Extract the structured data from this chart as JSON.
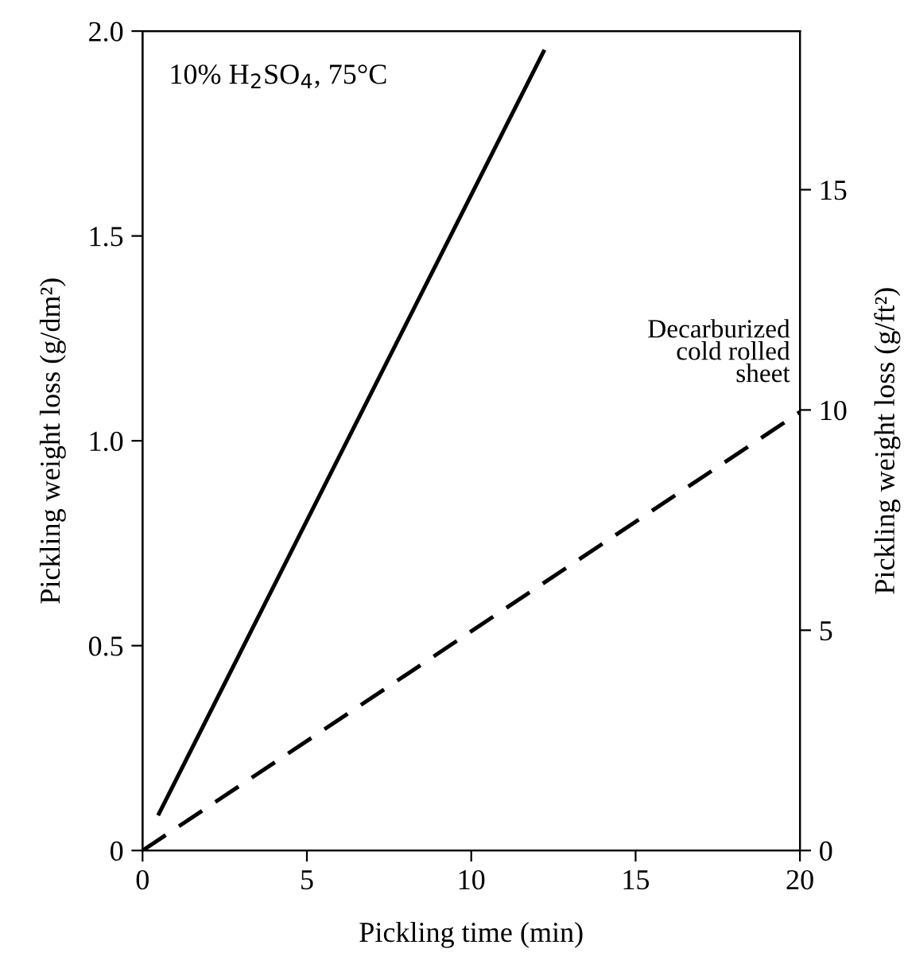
{
  "chart_data": {
    "type": "line",
    "xlabel": "Pickling time (min)",
    "ylabel": "Pickling weight loss (g/dm²)",
    "y2label": "Pickling weight loss (g/ft²)",
    "annotations": [
      "10% H$_{2}$SO$_{4}$, 75°C"
    ],
    "series": [
      {
        "color": "#000000",
        "line_style": "solid",
        "x": [
          0.5,
          12.2
        ],
        "values": [
          0.09,
          1.95
        ]
      },
      {
        "name": "Decarburized\ncold rolled\nsheet",
        "color": "#000000",
        "line_style": "dashed",
        "x": [
          0,
          20
        ],
        "values": [
          0,
          1.07
        ]
      }
    ],
    "xlim": [
      0,
      20
    ],
    "xticks": [
      0,
      5,
      10,
      15,
      20
    ],
    "ylim": [
      0,
      2.0
    ],
    "yticks": [
      0,
      {
        "value": 0.5,
        "label": "0.5"
      },
      {
        "value": 1.0,
        "label": "1.0"
      },
      {
        "value": 1.5,
        "label": "1.5"
      },
      {
        "value": 2.0,
        "label": "2.0"
      }
    ],
    "y2lim": [
      0,
      18.6
    ],
    "y2ticks": [
      0,
      5,
      10,
      15
    ],
    "grid": false,
    "legend": false
  }
}
